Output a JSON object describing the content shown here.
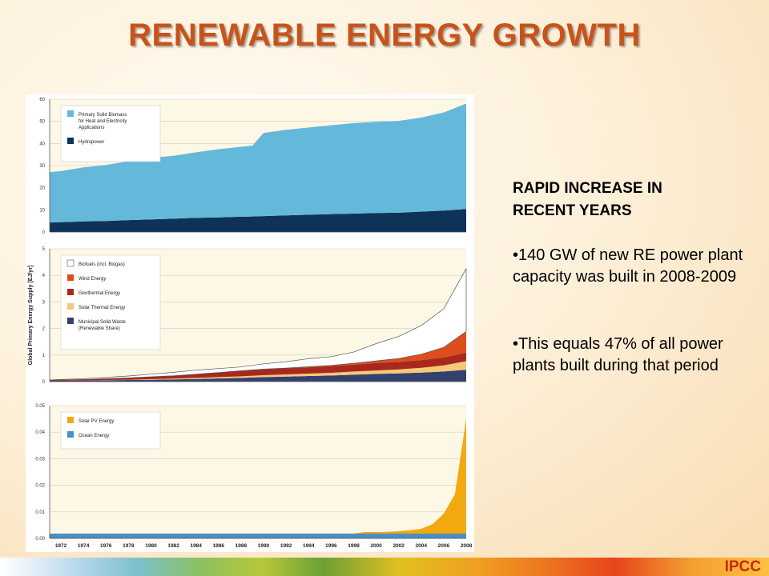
{
  "slide": {
    "title": "RENEWABLE ENERGY GROWTH",
    "heading": "RAPID INCREASE IN\nRECENT YEARS",
    "bullets": [
      "•140 GW of new RE power plant capacity was built in 2008-2009",
      "•This equals 47% of all power plants built during that period"
    ],
    "footer": "IPCC"
  },
  "colors": {
    "title": "#c8531a",
    "plot_bg": "#fdf7e6",
    "biomass": "#64b8da",
    "hydro": "#0e3358",
    "biofuels": "#ffffff",
    "wind": "#de4d1c",
    "geothermal": "#a8281e",
    "solar_thermal": "#f6c877",
    "msw": "#34416e",
    "pv": "#f2a80f",
    "ocean": "#4a8ec8"
  },
  "chart_data": [
    {
      "type": "area",
      "stacked": true,
      "x": [
        1971,
        1972,
        1974,
        1976,
        1978,
        1980,
        1982,
        1984,
        1986,
        1988,
        1989,
        1990,
        1992,
        1994,
        1996,
        1998,
        2000,
        2002,
        2004,
        2006,
        2008
      ],
      "ylim": [
        0,
        60
      ],
      "yticks": [
        "0",
        "10",
        "20",
        "30",
        "40",
        "50",
        "60"
      ],
      "series": [
        {
          "name": "Hydropower",
          "values": [
            4.3,
            4.4,
            4.8,
            5.0,
            5.4,
            5.7,
            6.0,
            6.4,
            6.6,
            6.9,
            7.0,
            7.2,
            7.5,
            7.8,
            8.1,
            8.3,
            8.6,
            8.7,
            9.2,
            9.7,
            10.4
          ]
        },
        {
          "name": "Primary Solid Biomass for Heat and Electricity Applications",
          "values": [
            22.7,
            23.1,
            24.4,
            25.3,
            26.6,
            27.8,
            28.4,
            29.6,
            30.8,
            31.6,
            32.0,
            37.5,
            38.7,
            39.4,
            40.1,
            40.9,
            41.2,
            41.5,
            42.5,
            44.3,
            47.6
          ]
        }
      ],
      "legend": "top-left"
    },
    {
      "type": "area",
      "stacked": true,
      "x": [
        1971,
        1972,
        1974,
        1976,
        1978,
        1980,
        1982,
        1984,
        1986,
        1988,
        1990,
        1992,
        1994,
        1996,
        1998,
        2000,
        2002,
        2004,
        2006,
        2008
      ],
      "ylim": [
        0,
        5
      ],
      "yticks": [
        "0",
        "1",
        "2",
        "3",
        "4",
        "5"
      ],
      "ylabel": "Global Primary Energy Supply [EJ/yr]",
      "series": [
        {
          "name": "Municipal Solid Waste (Renewable Share)",
          "values": [
            0.03,
            0.03,
            0.04,
            0.05,
            0.06,
            0.07,
            0.08,
            0.1,
            0.12,
            0.14,
            0.17,
            0.19,
            0.21,
            0.23,
            0.26,
            0.29,
            0.31,
            0.34,
            0.38,
            0.45
          ]
        },
        {
          "name": "Solar Thermal Energy",
          "values": [
            0.0,
            0.0,
            0.0,
            0.01,
            0.01,
            0.02,
            0.03,
            0.04,
            0.05,
            0.06,
            0.07,
            0.08,
            0.09,
            0.1,
            0.12,
            0.13,
            0.15,
            0.18,
            0.23,
            0.32
          ]
        },
        {
          "name": "Geothermal Energy",
          "values": [
            0.02,
            0.03,
            0.04,
            0.05,
            0.07,
            0.09,
            0.11,
            0.14,
            0.17,
            0.2,
            0.22,
            0.23,
            0.24,
            0.25,
            0.26,
            0.28,
            0.28,
            0.29,
            0.3,
            0.32
          ]
        },
        {
          "name": "Wind Energy",
          "values": [
            0.0,
            0.0,
            0.0,
            0.0,
            0.0,
            0.0,
            0.0,
            0.0,
            0.0,
            0.01,
            0.01,
            0.01,
            0.02,
            0.03,
            0.05,
            0.08,
            0.13,
            0.22,
            0.38,
            0.8
          ]
        },
        {
          "name": "Biofuels (incl. Biogas)",
          "values": [
            0.01,
            0.02,
            0.03,
            0.05,
            0.07,
            0.1,
            0.13,
            0.15,
            0.15,
            0.14,
            0.2,
            0.24,
            0.3,
            0.33,
            0.42,
            0.65,
            0.83,
            1.08,
            1.45,
            2.36
          ]
        }
      ],
      "legend": "top-left"
    },
    {
      "type": "area",
      "stacked": true,
      "x": [
        1971,
        1972,
        1974,
        1976,
        1978,
        1980,
        1982,
        1984,
        1986,
        1988,
        1990,
        1992,
        1994,
        1996,
        1998,
        1999,
        2000,
        2001,
        2002,
        2003,
        2004,
        2005,
        2006,
        2007,
        2008
      ],
      "ylim": [
        0,
        0.05
      ],
      "yticks": [
        "0.00",
        "0.01",
        "0.02",
        "0.03",
        "0.04",
        "0.05"
      ],
      "xticks": [
        "1972",
        "1974",
        "1976",
        "1978",
        "1980",
        "1982",
        "1984",
        "1986",
        "1988",
        "1990",
        "1992",
        "1994",
        "1996",
        "1998",
        "2000",
        "2002",
        "2004",
        "2006",
        "2008"
      ],
      "series": [
        {
          "name": "Ocean Energy",
          "values": [
            0.0018,
            0.0018,
            0.0018,
            0.0018,
            0.0018,
            0.0018,
            0.0018,
            0.0018,
            0.0018,
            0.0018,
            0.0018,
            0.0018,
            0.0018,
            0.0018,
            0.0018,
            0.0018,
            0.0018,
            0.0018,
            0.0018,
            0.0018,
            0.0018,
            0.0018,
            0.0018,
            0.0018,
            0.0018
          ]
        },
        {
          "name": "Solar PV Energy",
          "values": [
            0.0,
            0.0,
            0.0,
            0.0,
            0.0,
            0.0,
            0.0,
            0.0,
            0.0,
            0.0,
            0.0,
            0.0,
            0.0,
            0.0,
            0.0,
            0.0006,
            0.0006,
            0.0007,
            0.0009,
            0.0013,
            0.0018,
            0.0035,
            0.0075,
            0.0148,
            0.0432
          ]
        }
      ],
      "legend": "top-left"
    }
  ]
}
